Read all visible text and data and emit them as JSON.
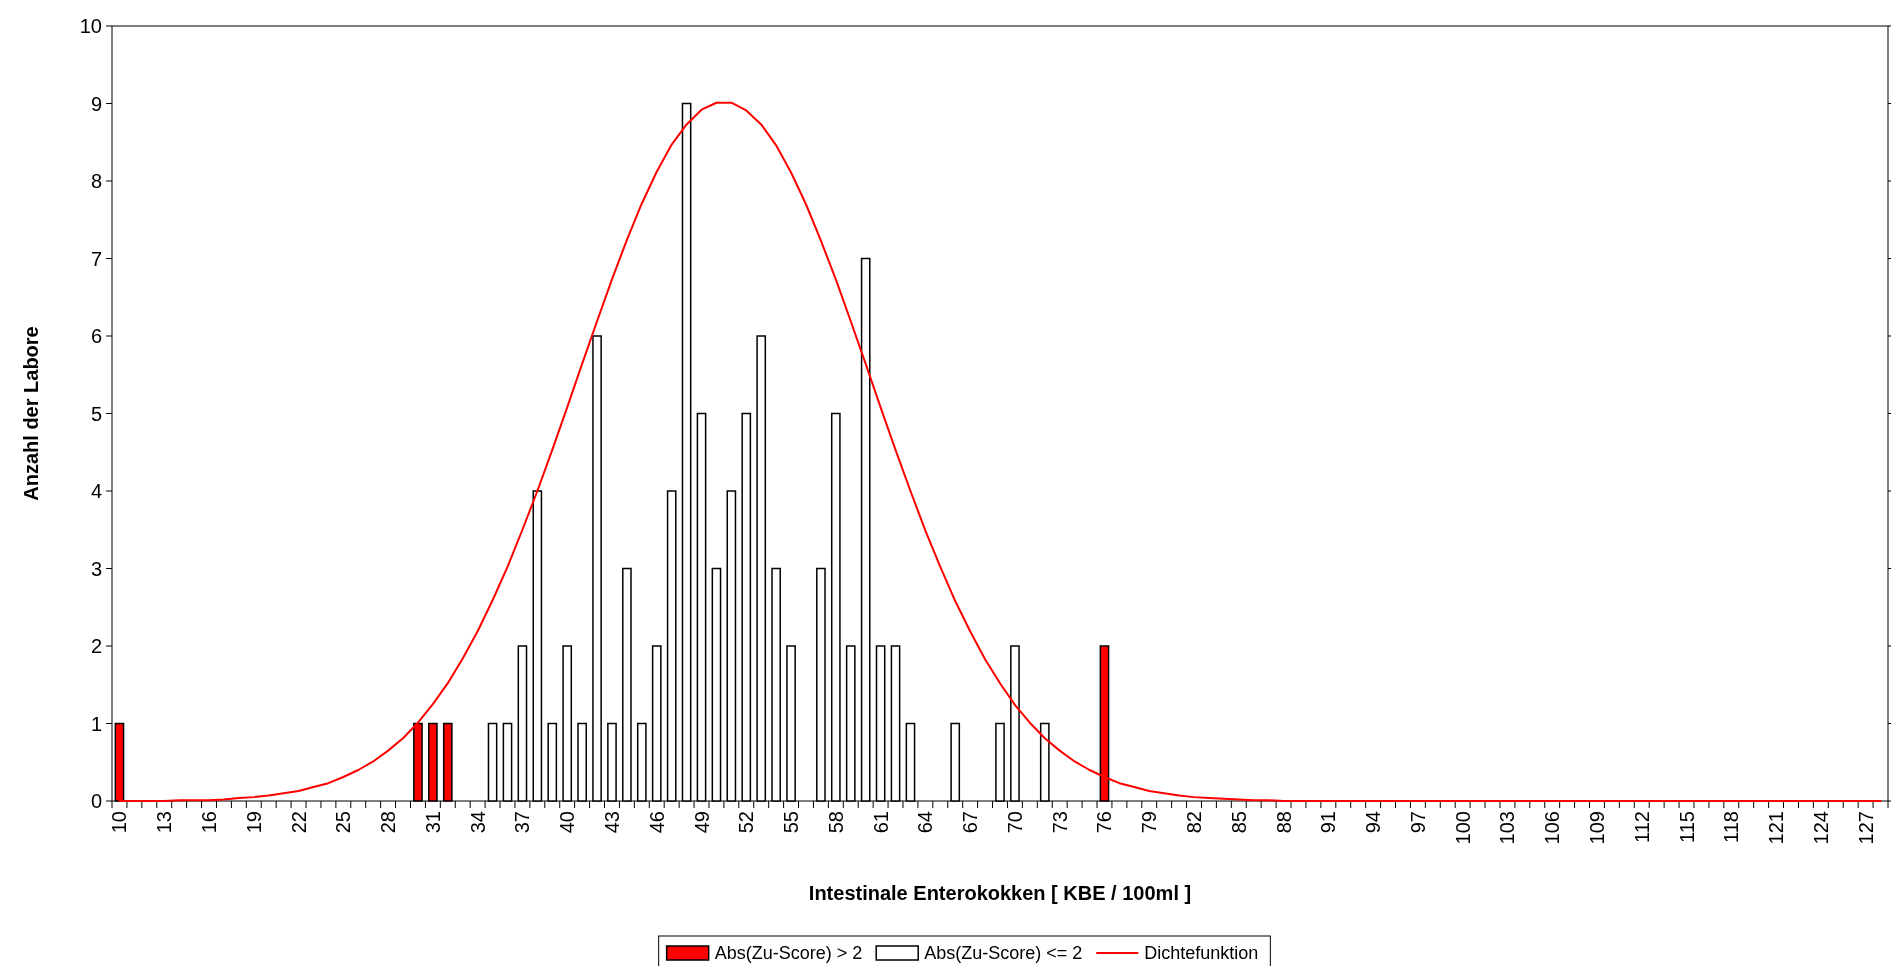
{
  "chart_data": {
    "type": "bar",
    "xlabel": "Intestinale Enterokokken [ KBE / 100ml ]",
    "ylabel": "Anzahl der Labore",
    "categories": [
      "10",
      null,
      null,
      "13",
      null,
      null,
      "16",
      null,
      null,
      "19",
      null,
      null,
      "22",
      null,
      null,
      "25",
      null,
      null,
      "28",
      null,
      null,
      "31",
      null,
      null,
      "34",
      null,
      null,
      "37",
      null,
      null,
      "40",
      null,
      null,
      "43",
      null,
      null,
      "46",
      null,
      null,
      "49",
      null,
      null,
      "52",
      null,
      null,
      "55",
      null,
      null,
      "58",
      null,
      null,
      "61",
      null,
      null,
      "64",
      null,
      null,
      "67",
      null,
      null,
      "70",
      null,
      null,
      "73",
      null,
      null,
      "76",
      null,
      null,
      "79",
      null,
      null,
      "82",
      null,
      null,
      "85",
      null,
      null,
      "88",
      null,
      null,
      "91",
      null,
      null,
      "94",
      null,
      null,
      "97",
      null,
      null,
      "100",
      null,
      null,
      "103",
      null,
      null,
      "106",
      null,
      null,
      "109",
      null,
      null,
      "112",
      null,
      null,
      "115",
      null,
      null,
      "118",
      null,
      null,
      "121",
      null,
      null,
      "124",
      null,
      null,
      "127",
      null
    ],
    "stacked": true,
    "series": [
      {
        "name": "Abs(Zu-Score) > 2",
        "color": "#ff0000",
        "values": [
          1,
          0,
          0,
          0,
          0,
          0,
          0,
          0,
          0,
          0,
          0,
          0,
          0,
          0,
          0,
          0,
          0,
          0,
          0,
          0,
          1,
          1,
          1,
          0,
          0,
          0,
          0,
          0,
          0,
          0,
          0,
          0,
          0,
          0,
          0,
          0,
          0,
          0,
          0,
          0,
          0,
          0,
          0,
          0,
          0,
          0,
          0,
          0,
          0,
          0,
          0,
          0,
          0,
          0,
          0,
          0,
          0,
          0,
          0,
          0,
          0,
          0,
          0,
          0,
          0,
          0,
          2,
          0,
          0,
          0,
          0,
          0,
          0,
          0,
          0,
          0,
          0,
          0,
          0,
          0,
          0,
          0,
          0,
          0,
          0,
          0,
          0,
          0,
          0,
          0,
          0,
          0,
          0,
          0,
          0,
          0,
          0,
          0,
          0,
          0,
          0,
          0,
          0,
          0,
          0,
          0,
          0,
          0,
          0,
          0,
          0,
          0,
          0,
          0,
          0,
          0,
          0,
          0,
          0
        ]
      },
      {
        "name": "Abs(Zu-Score) <= 2",
        "color": "#ffffff",
        "values": [
          0,
          0,
          0,
          0,
          0,
          0,
          0,
          0,
          0,
          0,
          0,
          0,
          0,
          0,
          0,
          0,
          0,
          0,
          0,
          0,
          0,
          0,
          0,
          0,
          0,
          1,
          1,
          2,
          4,
          1,
          2,
          1,
          6,
          1,
          3,
          1,
          2,
          4,
          9,
          5,
          3,
          4,
          5,
          6,
          3,
          2,
          0,
          3,
          5,
          2,
          7,
          2,
          2,
          1,
          0,
          0,
          1,
          0,
          0,
          1,
          2,
          0,
          1,
          0,
          0,
          0,
          0,
          0,
          0,
          0,
          0,
          0,
          0,
          0,
          0,
          0,
          0,
          0,
          0,
          0,
          0,
          0,
          0,
          0,
          0,
          0,
          0,
          0,
          0,
          0,
          0,
          0,
          0,
          0,
          0,
          0,
          0,
          0,
          0,
          0,
          0,
          0,
          0,
          0,
          0,
          0,
          0,
          0,
          0,
          0,
          0,
          0,
          0,
          0,
          0,
          0,
          0,
          0,
          0
        ]
      },
      {
        "name": "Dichtefunktion",
        "type": "line",
        "color": "#ff0000",
        "values": [
          0.0,
          0.0,
          0.0,
          0.0,
          0.01,
          0.01,
          0.01,
          0.02,
          0.04,
          0.05,
          0.07,
          0.1,
          0.13,
          0.18,
          0.23,
          0.31,
          0.4,
          0.51,
          0.65,
          0.81,
          1.01,
          1.25,
          1.52,
          1.84,
          2.19,
          2.59,
          3.02,
          3.5,
          4.0,
          4.53,
          5.08,
          5.64,
          6.19,
          6.73,
          7.24,
          7.71,
          8.12,
          8.47,
          8.73,
          8.92,
          9.01,
          9.01,
          8.91,
          8.73,
          8.46,
          8.11,
          7.7,
          7.23,
          6.73,
          6.19,
          5.64,
          5.08,
          4.53,
          4.0,
          3.49,
          3.02,
          2.58,
          2.19,
          1.83,
          1.52,
          1.24,
          1.01,
          0.81,
          0.65,
          0.51,
          0.4,
          0.31,
          0.23,
          0.18,
          0.13,
          0.1,
          0.07,
          0.05,
          0.04,
          0.03,
          0.02,
          0.01,
          0.01,
          0,
          0,
          0,
          0,
          0,
          0,
          0,
          0,
          0,
          0,
          0,
          0,
          0,
          0,
          0,
          0,
          0,
          0,
          0,
          0,
          0,
          0,
          0,
          0,
          0,
          0,
          0,
          0,
          0,
          0,
          0,
          0,
          0,
          0,
          0,
          0,
          0,
          0,
          0,
          0,
          0
        ]
      }
    ],
    "ylim": [
      0,
      10
    ],
    "yticks": [
      0,
      1,
      2,
      3,
      4,
      5,
      6,
      7,
      8,
      9,
      10
    ],
    "grid": false,
    "legend": "bottom",
    "marker": "none",
    "line_style": "solid"
  }
}
